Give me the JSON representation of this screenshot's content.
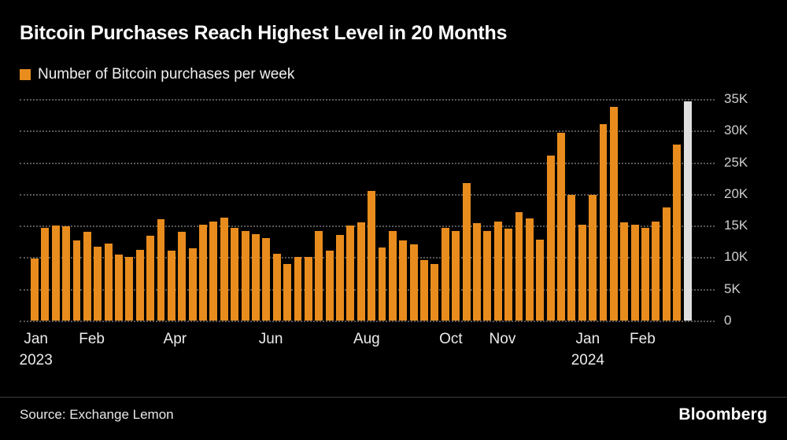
{
  "title": "Bitcoin Purchases Reach Highest Level in 20 Months",
  "legend": {
    "label": "Number of Bitcoin purchases per week",
    "swatch_color": "#E88C1E"
  },
  "source": "Source: Exchange Lemon",
  "brand": "Bloomberg",
  "colors": {
    "background": "#000000",
    "bar": "#E88C1E",
    "highlight_bar": "#DFDFDF",
    "grid": "#585858",
    "axis_text": "#CFCFCF"
  },
  "chart_data": {
    "type": "bar",
    "title": "Bitcoin Purchases Reach Highest Level in 20 Months",
    "series_label": "Number of Bitcoin purchases per week",
    "x_unit": "week",
    "ylim": [
      0,
      35000
    ],
    "grid": true,
    "legend_position": "top-left",
    "highlight_index": 62,
    "values": [
      9800,
      14700,
      15000,
      14900,
      12600,
      14000,
      11700,
      12200,
      10400,
      10100,
      11200,
      13400,
      16000,
      11000,
      14000,
      11400,
      15100,
      15600,
      16200,
      14700,
      14100,
      13700,
      13000,
      10600,
      8900,
      10000,
      10100,
      14100,
      11000,
      13500,
      15000,
      15500,
      20500,
      11500,
      14200,
      12700,
      12100,
      9600,
      9000,
      14600,
      14100,
      21700,
      15400,
      14100,
      15700,
      14500,
      17100,
      16100,
      12800,
      26100,
      29700,
      19900,
      15200,
      19900,
      31000,
      33800,
      15500,
      15100,
      14600,
      15600,
      17900,
      27800,
      34600
    ],
    "yticks": [
      {
        "value": 0,
        "label": "0"
      },
      {
        "value": 5000,
        "label": "5K"
      },
      {
        "value": 10000,
        "label": "10K"
      },
      {
        "value": 15000,
        "label": "15K"
      },
      {
        "value": 20000,
        "label": "20K"
      },
      {
        "value": 25000,
        "label": "25K"
      },
      {
        "value": 30000,
        "label": "30K"
      },
      {
        "value": 35000,
        "label": "35K"
      }
    ],
    "xticks": [
      {
        "label": "Jan",
        "sublabel": "2023",
        "week": 0
      },
      {
        "label": "Feb",
        "week": 5.3
      },
      {
        "label": "Apr",
        "week": 13.2
      },
      {
        "label": "Jun",
        "week": 22.3
      },
      {
        "label": "Aug",
        "week": 31.4
      },
      {
        "label": "Oct",
        "week": 39.4
      },
      {
        "label": "Nov",
        "week": 44.3
      },
      {
        "label": "Jan",
        "sublabel": "2024",
        "week": 52.4
      },
      {
        "label": "Feb",
        "week": 57.6
      }
    ]
  }
}
